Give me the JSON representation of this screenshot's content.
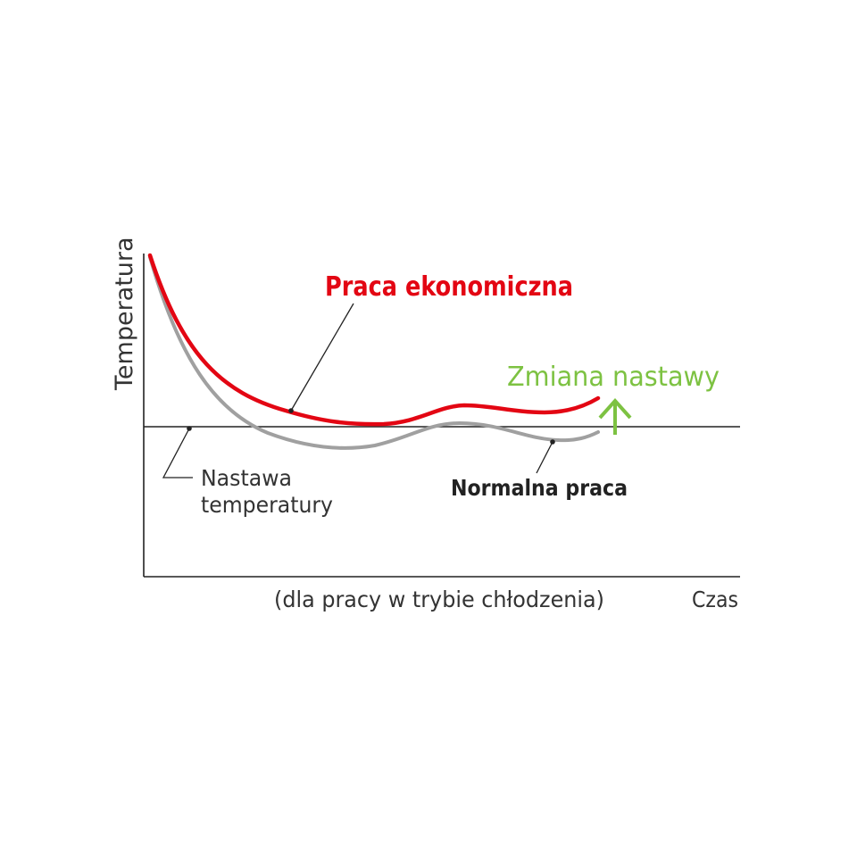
{
  "colors": {
    "economy": "#e30613",
    "normal": "#a0a0a0",
    "setpoint_change": "#7dc242",
    "axis": "#222222",
    "text": "#333333"
  },
  "labels": {
    "y_axis": "Temperatura",
    "x_axis": "Czas",
    "economy_mode": "Praca ekonomiczna",
    "normal_mode": "Normalna praca",
    "setpoint_change": "Zmiana nastawy",
    "setpoint_line1": "Nastawa",
    "setpoint_line2": "temperatury",
    "caption": "(dla pracy w trybie chłodzenia)"
  },
  "icons": {
    "setpoint_change": "arrow-up-icon"
  }
}
